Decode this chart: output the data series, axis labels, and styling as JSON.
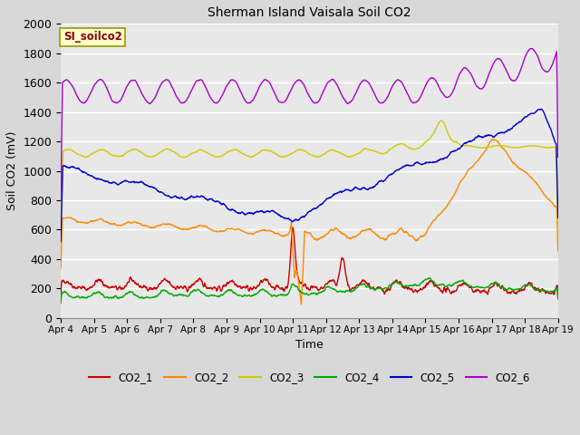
{
  "title": "Sherman Island Vaisala Soil CO2",
  "xlabel": "Time",
  "ylabel": "Soil CO2 (mV)",
  "watermark": "SI_soilco2",
  "ylim": [
    0,
    2000
  ],
  "yticks": [
    0,
    200,
    400,
    600,
    800,
    1000,
    1200,
    1400,
    1600,
    1800,
    2000
  ],
  "xtick_labels": [
    "Apr 4",
    "Apr 5",
    "Apr 6",
    "Apr 7",
    "Apr 8",
    "Apr 9",
    "Apr 10",
    "Apr 11",
    "Apr 12",
    "Apr 13",
    "Apr 14",
    "Apr 15",
    "Apr 16",
    "Apr 17",
    "Apr 18",
    "Apr 19"
  ],
  "colors": {
    "CO2_1": "#cc0000",
    "CO2_2": "#ff8800",
    "CO2_3": "#cccc00",
    "CO2_4": "#00aa00",
    "CO2_5": "#0000cc",
    "CO2_6": "#aa00cc"
  },
  "plot_bg_color": "#e8e8e8",
  "fig_bg_color": "#d8d8d8"
}
